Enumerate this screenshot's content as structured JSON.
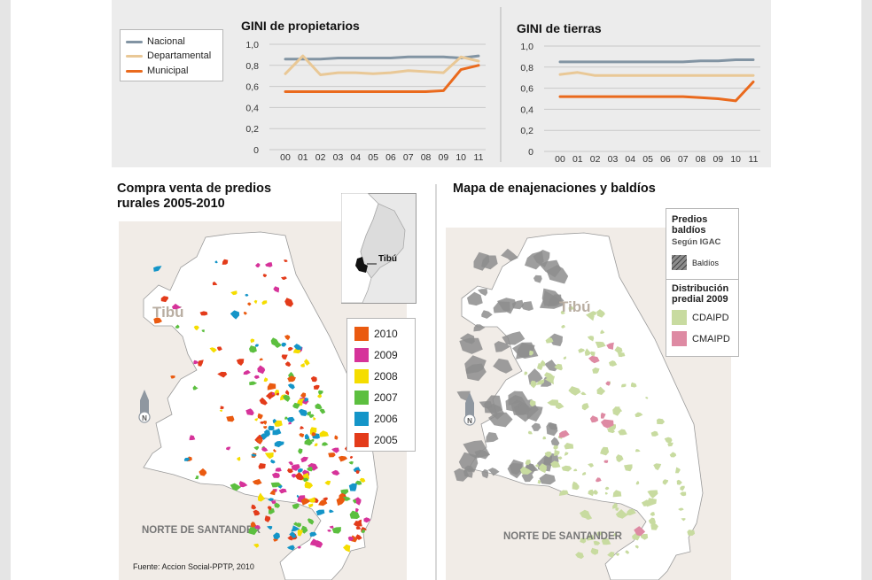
{
  "chart_data": [
    {
      "type": "line",
      "title": "GINI de propietarios",
      "categories": [
        "00",
        "01",
        "02",
        "03",
        "04",
        "05",
        "06",
        "07",
        "08",
        "09",
        "10",
        "11"
      ],
      "yticks": [
        "1,0",
        "0,8",
        "0,6",
        "0,4",
        "0,2",
        "0"
      ],
      "ylim": [
        0,
        1.0
      ],
      "series": [
        {
          "name": "Nacional",
          "color": "#8294a3",
          "values": [
            0.86,
            0.86,
            0.86,
            0.87,
            0.87,
            0.87,
            0.87,
            0.88,
            0.88,
            0.88,
            0.87,
            0.89
          ]
        },
        {
          "name": "Departamental",
          "color": "#e9c896",
          "values": [
            0.72,
            0.89,
            0.71,
            0.73,
            0.73,
            0.72,
            0.73,
            0.75,
            0.74,
            0.73,
            0.88,
            0.84
          ]
        },
        {
          "name": "Municipal",
          "color": "#ea6a1d",
          "values": [
            0.55,
            0.55,
            0.55,
            0.55,
            0.55,
            0.55,
            0.55,
            0.55,
            0.55,
            0.56,
            0.76,
            0.8
          ]
        }
      ]
    },
    {
      "type": "line",
      "title": "GINI de tierras",
      "categories": [
        "00",
        "01",
        "02",
        "03",
        "04",
        "05",
        "06",
        "07",
        "08",
        "09",
        "10",
        "11"
      ],
      "yticks": [
        "1,0",
        "0,8",
        "0,6",
        "0,4",
        "0,2",
        "0"
      ],
      "ylim": [
        0,
        1.0
      ],
      "series": [
        {
          "name": "Nacional",
          "color": "#8294a3",
          "values": [
            0.85,
            0.85,
            0.85,
            0.85,
            0.85,
            0.85,
            0.85,
            0.85,
            0.86,
            0.86,
            0.87,
            0.87
          ]
        },
        {
          "name": "Departamental",
          "color": "#e9c896",
          "values": [
            0.73,
            0.75,
            0.72,
            0.72,
            0.72,
            0.72,
            0.72,
            0.72,
            0.72,
            0.72,
            0.72,
            0.72
          ]
        },
        {
          "name": "Municipal",
          "color": "#ea6a1d",
          "values": [
            0.52,
            0.52,
            0.52,
            0.52,
            0.52,
            0.52,
            0.52,
            0.52,
            0.51,
            0.5,
            0.48,
            0.66
          ]
        }
      ]
    }
  ],
  "legend": {
    "items": [
      {
        "label": "Nacional",
        "color": "#8294a3"
      },
      {
        "label": "Departamental",
        "color": "#e9c896"
      },
      {
        "label": "Municipal",
        "color": "#ea6a1d"
      }
    ]
  },
  "left_map": {
    "title_line1": "Compra venta de predios",
    "title_line2": "rurales 2005-2010",
    "town_label": "Tibú",
    "region_label": "NORTE DE SANTANDER",
    "north_label": "N",
    "inset_label": "Tibú",
    "years": [
      {
        "label": "2010",
        "color": "#ea5a10"
      },
      {
        "label": "2009",
        "color": "#d6339a"
      },
      {
        "label": "2008",
        "color": "#f5dd00"
      },
      {
        "label": "2007",
        "color": "#5cbf3f"
      },
      {
        "label": "2006",
        "color": "#1495c8"
      },
      {
        "label": "2005",
        "color": "#e33b1a"
      }
    ],
    "source": "Fuente: Accion Social-PPTP, 2010"
  },
  "right_map": {
    "title": "Mapa de enajenaciones y baldíos",
    "town_label": "Tibú",
    "region_label": "NORTE DE SANTANDER",
    "north_label": "N",
    "legend": {
      "head1_l1": "Predios",
      "head1_l2": "baldíos",
      "head1_sub": "Según IGAC",
      "baldios_label": "Baldíos",
      "head2_l1": "Distribución",
      "head2_l2": "predial 2009",
      "cdaipd_label": "CDAIPD",
      "cmaipd_label": "CMAIPD",
      "cdaipd_color": "#c8dba0",
      "cmaipd_color": "#de8aa3",
      "baldios_color": "#8d8d8d"
    }
  }
}
